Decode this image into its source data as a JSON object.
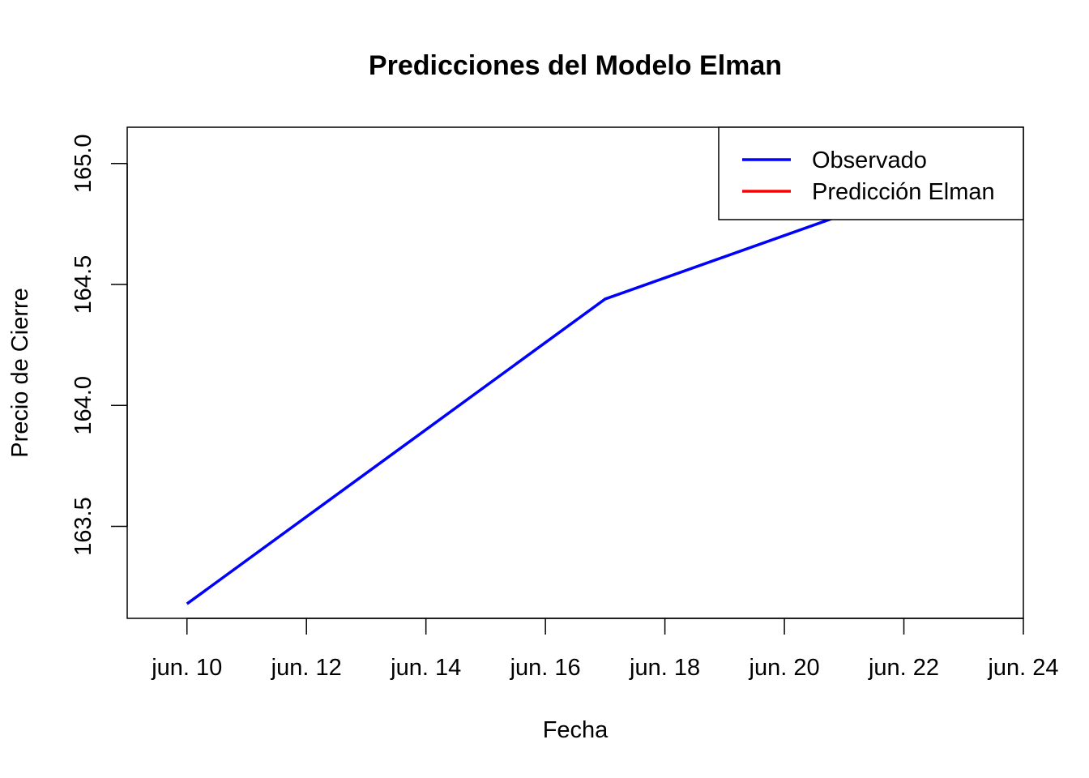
{
  "chart_data": {
    "type": "line",
    "title": "Predicciones del Modelo Elman",
    "xlabel": "Fecha",
    "ylabel": "Precio de Cierre",
    "xlim": [
      "jun. 09.72",
      "jun. 24.28"
    ],
    "ylim": [
      163.12,
      165.15
    ],
    "x_ticks": [
      "jun. 10",
      "jun. 12",
      "jun. 14",
      "jun. 16",
      "jun. 18",
      "jun. 20",
      "jun. 22",
      "jun. 24"
    ],
    "y_ticks": [
      "163.5",
      "164.0",
      "164.5",
      "165.0"
    ],
    "series": [
      {
        "name": "Observado",
        "color": "#0000FF",
        "x": [
          "jun. 10",
          "jun. 17",
          "jun. 21"
        ],
        "y": [
          163.18,
          164.44,
          164.79
        ]
      },
      {
        "name": "Predicción Elman",
        "color": "#FF0000",
        "x": [],
        "y": []
      }
    ],
    "legend": {
      "position": "top-right",
      "entries": [
        "Observado",
        "Predicción Elman"
      ]
    },
    "grid": false
  }
}
